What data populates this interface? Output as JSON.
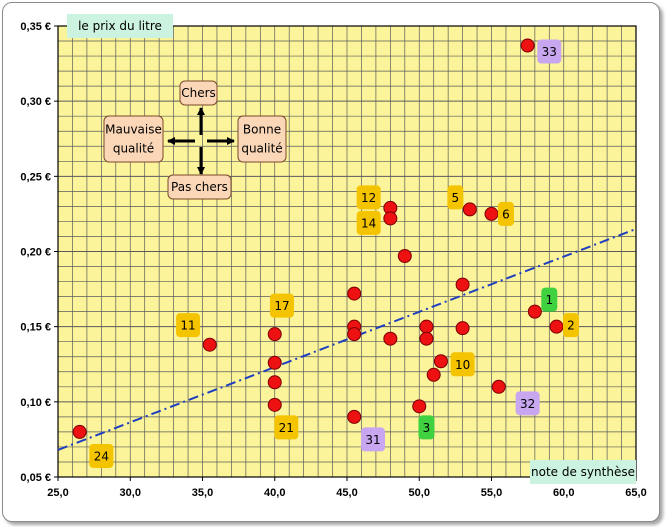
{
  "chart_data": {
    "type": "scatter",
    "title": "",
    "xlabel": "note de synthèse",
    "ylabel": "le prix du litre",
    "xlim": [
      25,
      65
    ],
    "ylim": [
      0.05,
      0.35
    ],
    "x_ticks": [
      "25,0",
      "30,0",
      "35,0",
      "40,0",
      "45,0",
      "50,0",
      "55,0",
      "60,0",
      "65,0"
    ],
    "y_ticks": [
      "0,05 €",
      "0,10 €",
      "0,15 €",
      "0,20 €",
      "0,25 €",
      "0,30 €",
      "0,35 €"
    ],
    "grid": true,
    "points": [
      {
        "x": 26.5,
        "y": 0.08
      },
      {
        "x": 35.5,
        "y": 0.138
      },
      {
        "x": 40.0,
        "y": 0.145
      },
      {
        "x": 40.0,
        "y": 0.126
      },
      {
        "x": 40.0,
        "y": 0.113
      },
      {
        "x": 40.0,
        "y": 0.098
      },
      {
        "x": 45.5,
        "y": 0.172
      },
      {
        "x": 45.5,
        "y": 0.15
      },
      {
        "x": 45.5,
        "y": 0.145
      },
      {
        "x": 45.5,
        "y": 0.09
      },
      {
        "x": 48.0,
        "y": 0.229
      },
      {
        "x": 48.0,
        "y": 0.222
      },
      {
        "x": 48.0,
        "y": 0.142
      },
      {
        "x": 49.0,
        "y": 0.197
      },
      {
        "x": 50.0,
        "y": 0.097
      },
      {
        "x": 50.5,
        "y": 0.15
      },
      {
        "x": 50.5,
        "y": 0.142
      },
      {
        "x": 51.0,
        "y": 0.118
      },
      {
        "x": 51.5,
        "y": 0.127
      },
      {
        "x": 53.0,
        "y": 0.178
      },
      {
        "x": 53.0,
        "y": 0.149
      },
      {
        "x": 53.5,
        "y": 0.228
      },
      {
        "x": 55.0,
        "y": 0.225
      },
      {
        "x": 55.5,
        "y": 0.11
      },
      {
        "x": 57.5,
        "y": 0.337
      },
      {
        "x": 58.0,
        "y": 0.16
      },
      {
        "x": 59.5,
        "y": 0.15
      }
    ],
    "trendline": {
      "style": "dash-dot",
      "color": "#1f3fbf",
      "from": {
        "x": 25,
        "y": 0.068
      },
      "to": {
        "x": 65,
        "y": 0.215
      }
    },
    "annotations": [
      {
        "text": "33",
        "x": 59.0,
        "y": 0.333,
        "color": "#c8a6f0"
      },
      {
        "text": "5",
        "x": 52.5,
        "y": 0.236,
        "color": "#f5c400"
      },
      {
        "text": "6",
        "x": 56.0,
        "y": 0.225,
        "color": "#f5c400"
      },
      {
        "text": "12",
        "x": 46.5,
        "y": 0.236,
        "color": "#f5c400"
      },
      {
        "text": "14",
        "x": 46.5,
        "y": 0.219,
        "color": "#f5c400"
      },
      {
        "text": "17",
        "x": 40.5,
        "y": 0.164,
        "color": "#f5c400"
      },
      {
        "text": "11",
        "x": 34.0,
        "y": 0.151,
        "color": "#f5c400"
      },
      {
        "text": "1",
        "x": 59.0,
        "y": 0.168,
        "color": "#3fd13f"
      },
      {
        "text": "2",
        "x": 60.5,
        "y": 0.151,
        "color": "#f5c400"
      },
      {
        "text": "10",
        "x": 53.0,
        "y": 0.125,
        "color": "#f5c400"
      },
      {
        "text": "32",
        "x": 57.5,
        "y": 0.099,
        "color": "#c8a6f0"
      },
      {
        "text": "21",
        "x": 40.8,
        "y": 0.083,
        "color": "#f5c400"
      },
      {
        "text": "31",
        "x": 46.8,
        "y": 0.075,
        "color": "#c8a6f0"
      },
      {
        "text": "3",
        "x": 50.5,
        "y": 0.083,
        "color": "#3fd13f"
      },
      {
        "text": "24",
        "x": 28.0,
        "y": 0.064,
        "color": "#f5c400"
      }
    ],
    "compass": {
      "top": "Chers",
      "bottom": "Pas chers",
      "left_line1": "Mauvaise",
      "left_line2": "qualité",
      "right_line1": "Bonne",
      "right_line2": "qualité"
    }
  }
}
